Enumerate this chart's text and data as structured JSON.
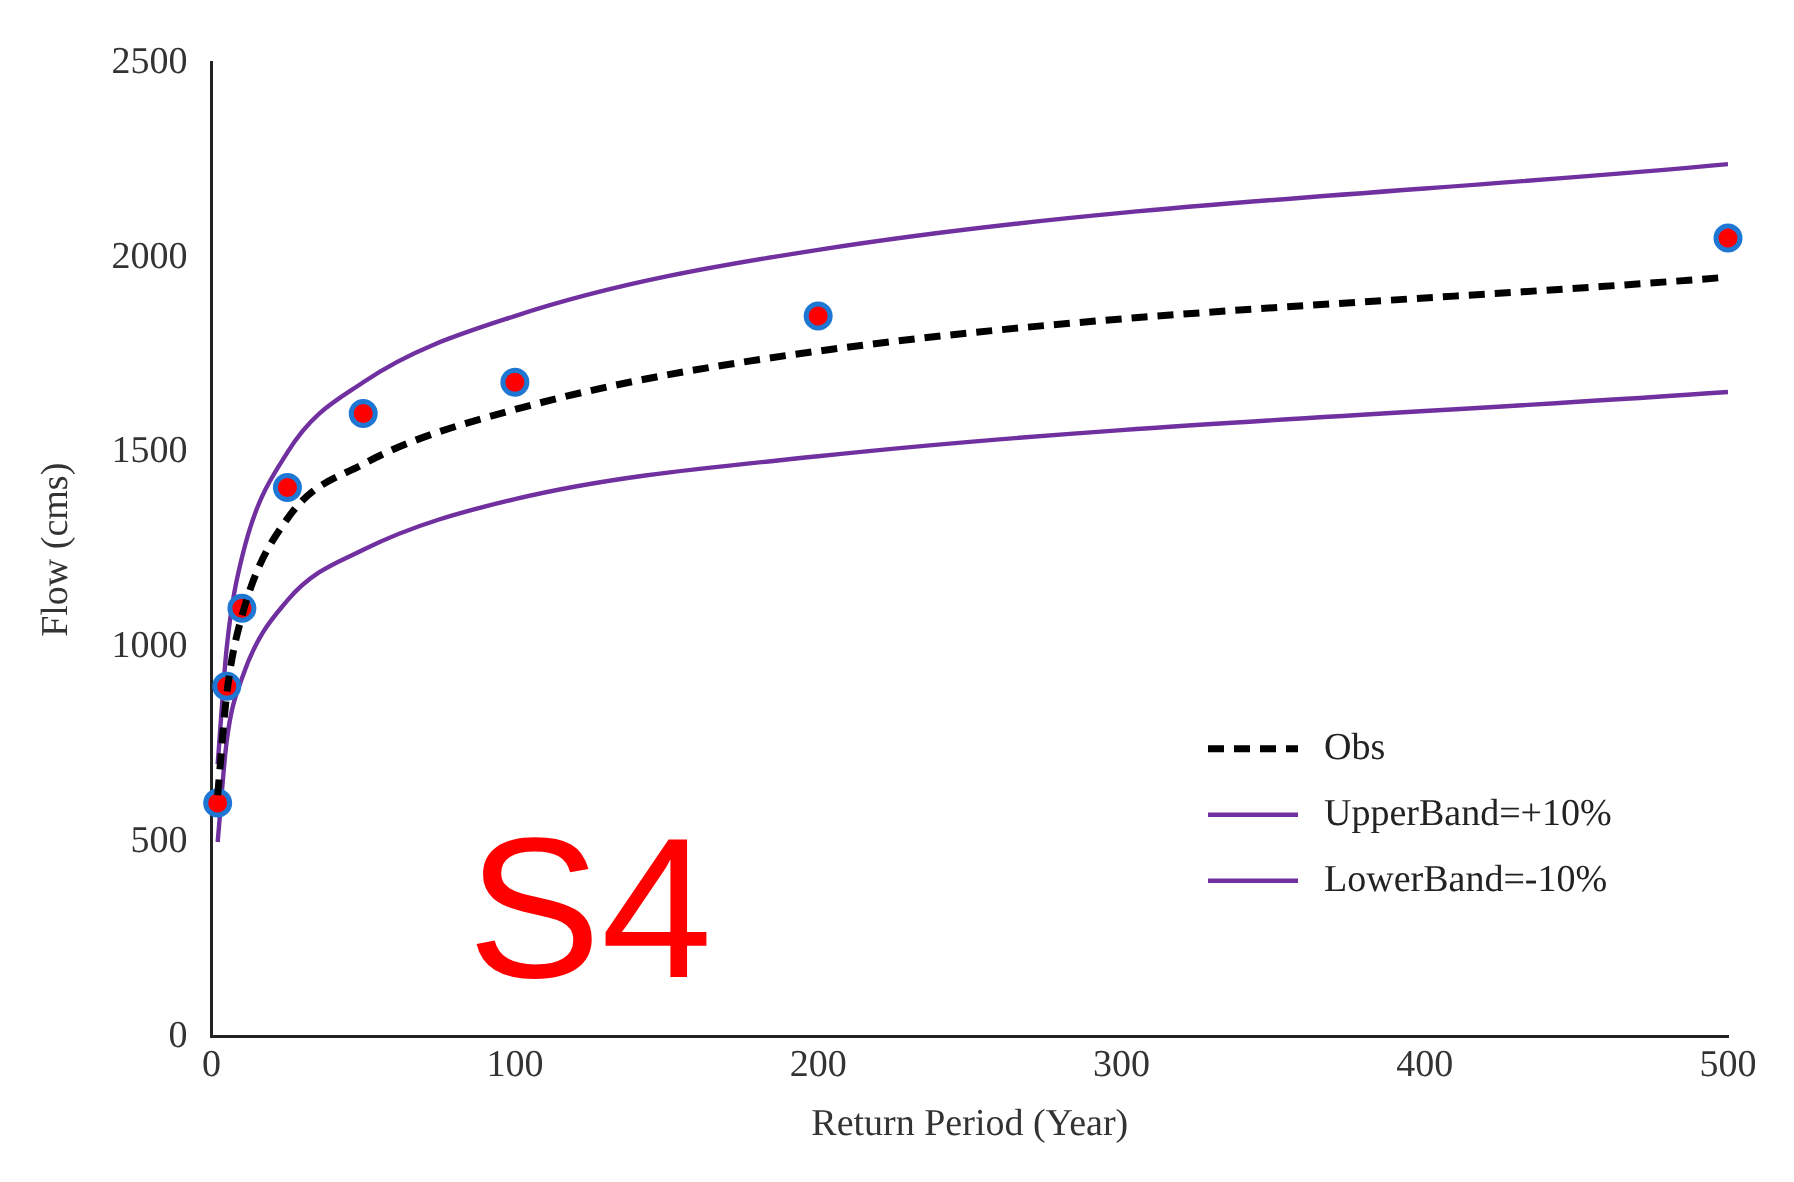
{
  "chart_data": {
    "type": "line",
    "xlabel": "Return Period (Year)",
    "ylabel": "Flow (cms)",
    "x": [
      2,
      5,
      10,
      25,
      50,
      100,
      200,
      500
    ],
    "series": [
      {
        "name": "Obs",
        "color": "#000000",
        "line_style": "dashed",
        "marker": "none",
        "values": [
          620,
          880,
          1080,
          1330,
          1470,
          1610,
          1760,
          1950
        ]
      },
      {
        "type": "scatter",
        "color": "#ff0000",
        "marker": "circle",
        "values": [
          600,
          900,
          1100,
          1410,
          1600,
          1680,
          1850,
          2050
        ]
      },
      {
        "name": "UpperBand=+10%",
        "color": "#7030a0",
        "line_style": "solid",
        "marker": "none",
        "values": [
          700,
          1000,
          1230,
          1500,
          1680,
          1850,
          2020,
          2240
        ]
      },
      {
        "name": "LowerBand=-10%",
        "color": "#7030a0",
        "line_style": "solid",
        "marker": "none",
        "values": [
          500,
          760,
          920,
          1120,
          1250,
          1380,
          1490,
          1655
        ]
      }
    ],
    "xlim": [
      0,
      500
    ],
    "xticks": [
      0,
      100,
      200,
      300,
      400,
      500
    ],
    "ylim": [
      0,
      2500
    ],
    "yticks": [
      0,
      500,
      1000,
      1500,
      2000,
      2500
    ],
    "grid": false,
    "legend": "bottom right",
    "annotations": [
      "S4"
    ]
  }
}
